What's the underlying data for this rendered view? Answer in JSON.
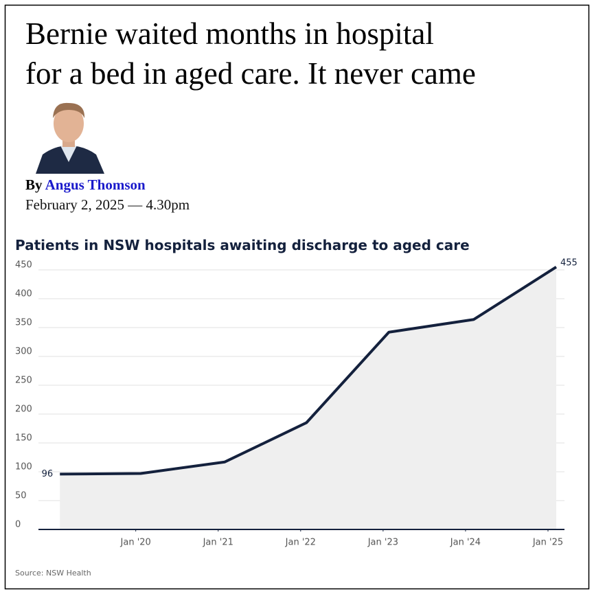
{
  "header": {
    "title_lines": [
      "Bernie waited months in hospital",
      "for a bed in aged care. It never came"
    ],
    "byline_prefix": "By",
    "author": "Angus Thomson",
    "date": "February 2, 2025 — 4.30pm"
  },
  "chart_data": {
    "type": "area",
    "title": "Patients in NSW hospitals awaiting discharge to aged care",
    "x": [
      2019.08,
      2020.06,
      2021.08,
      2022.07,
      2023.07,
      2024.1,
      2025.1
    ],
    "series": [
      {
        "name": "Patients",
        "color": "#14213d",
        "fill": "#efefef",
        "values": [
          96,
          97,
          117,
          185,
          342,
          364,
          455
        ]
      }
    ],
    "xlim": [
      2018.82,
      2025.2
    ],
    "xticks": [
      {
        "value": 2020,
        "label": "Jan '20"
      },
      {
        "value": 2021,
        "label": "Jan '21"
      },
      {
        "value": 2022,
        "label": "Jan '22"
      },
      {
        "value": 2023,
        "label": "Jan '23"
      },
      {
        "value": 2024,
        "label": "Jan '24"
      },
      {
        "value": 2025,
        "label": "Jan '25"
      }
    ],
    "ylim": [
      0,
      450
    ],
    "yticks": [
      0,
      50,
      100,
      150,
      200,
      250,
      300,
      350,
      400,
      450
    ],
    "grid": true,
    "source": "Source: NSW Health"
  }
}
